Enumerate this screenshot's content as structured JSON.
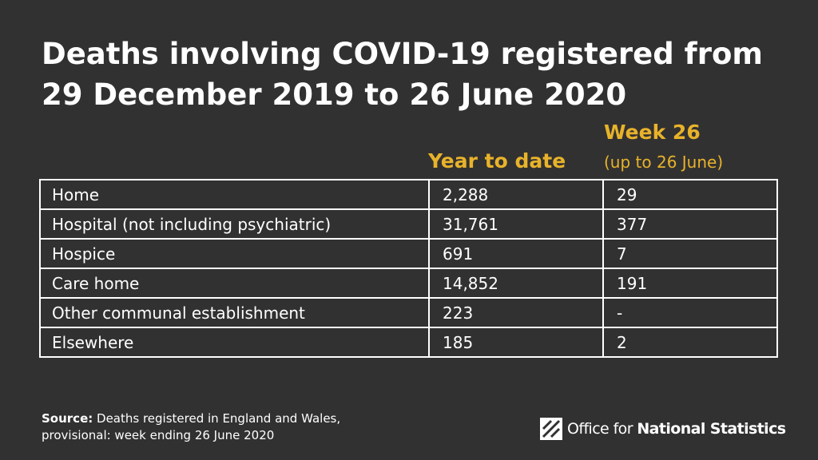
{
  "title": "Deaths involving COVID-19 registered from 29 December 2019 to 26 June 2020",
  "chart_data": {
    "type": "table",
    "title": "Deaths involving COVID-19 registered from 29 December 2019 to 26 June 2020",
    "columns": [
      "",
      "Year to date",
      "Week 26 (up to 26 June)"
    ],
    "rows": [
      {
        "label": "Home",
        "year_to_date": "2,288",
        "week_26": "29"
      },
      {
        "label": "Hospital (not including psychiatric)",
        "year_to_date": "31,761",
        "week_26": "377"
      },
      {
        "label": "Hospice",
        "year_to_date": "691",
        "week_26": "7"
      },
      {
        "label": "Care home",
        "year_to_date": "14,852",
        "week_26": "191"
      },
      {
        "label": "Other communal establishment",
        "year_to_date": "223",
        "week_26": "-"
      },
      {
        "label": "Elsewhere",
        "year_to_date": "185",
        "week_26": "2"
      }
    ]
  },
  "headers": {
    "year_to_date": "Year to date",
    "week": "Week 26",
    "week_sub": "(up to 26 June)"
  },
  "source": {
    "label": "Source:",
    "text": " Deaths registered in England and Wales,",
    "text2": "provisional: week ending 26 June 2020"
  },
  "logo": {
    "icon": "ons-logo-icon",
    "text_regular": "Office for ",
    "text_bold": "National Statistics"
  },
  "colors": {
    "background": "#323132",
    "accent": "#e8b32a",
    "text": "#ffffff"
  }
}
